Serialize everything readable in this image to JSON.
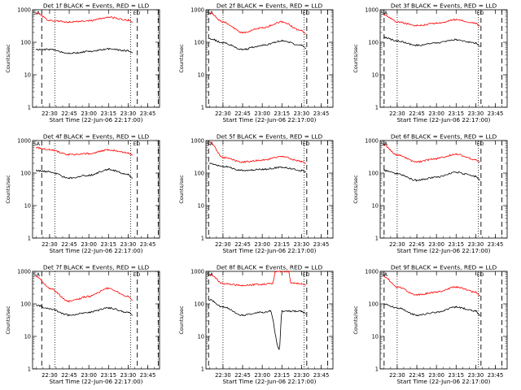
{
  "colors": {
    "events": "#000000",
    "lld": "#ff0000",
    "axes": "#000000",
    "background": "#ffffff"
  },
  "chart_data": [
    {
      "type": "line",
      "title": "Det 1f BLACK = Events, RED = LLD",
      "xlabel": "Start Time (22-Jun-06 22:17:00)",
      "ylabel": "Counts/sec",
      "xlim": [
        "22:17",
        "23:54"
      ],
      "ylim": [
        1,
        1000
      ],
      "yscale": "log",
      "xticks": [
        "22:30",
        "22:45",
        "23:00",
        "23:15",
        "23:30",
        "23:45"
      ],
      "yticks": [
        "1",
        "10",
        "100",
        "1000"
      ],
      "markers": {
        "dashed": [
          "22:24",
          "23:37",
          "23:53"
        ],
        "dotted": [
          "22:34",
          "23:32"
        ],
        "flag_labels": [
          "SA",
          "ED"
        ]
      },
      "series": [
        {
          "name": "Events",
          "x": [
            "22:20",
            "22:30",
            "22:45",
            "23:00",
            "23:15",
            "23:30",
            "23:33"
          ],
          "values": [
            60,
            60,
            45,
            52,
            62,
            55,
            48
          ]
        },
        {
          "name": "LLD",
          "x": [
            "22:20",
            "22:30",
            "22:45",
            "23:00",
            "23:15",
            "23:30",
            "23:33"
          ],
          "values": [
            800,
            470,
            420,
            460,
            590,
            480,
            420
          ]
        }
      ]
    },
    {
      "type": "line",
      "title": "Det 2f BLACK = Events, RED = LLD",
      "xlabel": "Start Time (22-Jun-06 22:17:00)",
      "ylabel": "Counts/sec",
      "xlim": [
        "22:17",
        "23:54"
      ],
      "ylim": [
        1,
        1000
      ],
      "yscale": "log",
      "xticks": [
        "22:30",
        "22:45",
        "23:00",
        "23:15",
        "23:30",
        "23:45"
      ],
      "yticks": [
        "1",
        "10",
        "100",
        "1000"
      ],
      "markers": {
        "dashed": [
          "22:19",
          "23:34",
          "23:50"
        ],
        "dotted": [
          "22:30",
          "23:32"
        ],
        "flag_labels": [
          "SA",
          "ED"
        ]
      },
      "series": [
        {
          "name": "Events",
          "x": [
            "22:20",
            "22:30",
            "22:45",
            "23:00",
            "23:15",
            "23:30",
            "23:33"
          ],
          "values": [
            130,
            95,
            60,
            80,
            110,
            80,
            65
          ]
        },
        {
          "name": "LLD",
          "x": [
            "22:20",
            "22:30",
            "22:45",
            "23:00",
            "23:15",
            "23:30",
            "23:33"
          ],
          "values": [
            800,
            420,
            200,
            280,
            420,
            230,
            180
          ]
        }
      ]
    },
    {
      "type": "line",
      "title": "Det 3f BLACK = Events, RED = LLD",
      "xlabel": "Start Time (22-Jun-06 22:17:00)",
      "ylabel": "Counts/sec",
      "xlim": [
        "22:17",
        "23:54"
      ],
      "ylim": [
        1,
        1000
      ],
      "yscale": "log",
      "xticks": [
        "22:30",
        "22:45",
        "23:00",
        "23:15",
        "23:30",
        "23:45"
      ],
      "yticks": [
        "1",
        "10",
        "100",
        "1000"
      ],
      "markers": {
        "dashed": [
          "22:20",
          "23:34",
          "23:50"
        ],
        "dotted": [
          "22:30",
          "23:32"
        ],
        "flag_labels": [
          "SA",
          "ED"
        ]
      },
      "series": [
        {
          "name": "Events",
          "x": [
            "22:20",
            "22:30",
            "22:45",
            "23:00",
            "23:15",
            "23:30",
            "23:33"
          ],
          "values": [
            140,
            110,
            80,
            95,
            120,
            95,
            75
          ]
        },
        {
          "name": "LLD",
          "x": [
            "22:20",
            "22:30",
            "22:45",
            "23:00",
            "23:15",
            "23:30",
            "23:33"
          ],
          "values": [
            700,
            420,
            330,
            380,
            500,
            380,
            320
          ]
        }
      ]
    },
    {
      "type": "line",
      "title": "Det 4f BLACK = Events, RED = LLD",
      "xlabel": "Start Time (22-Jun-06 22:17:00)",
      "ylabel": "Counts/sec",
      "xlim": [
        "22:17",
        "23:54"
      ],
      "ylim": [
        1,
        1000
      ],
      "yscale": "log",
      "xticks": [
        "22:30",
        "22:45",
        "23:00",
        "23:15",
        "23:30",
        "23:45"
      ],
      "yticks": [
        "1",
        "10",
        "100",
        "1000"
      ],
      "markers": {
        "dashed": [
          "22:24",
          "23:37",
          "23:53"
        ],
        "dotted": [
          "22:34",
          "23:32"
        ],
        "flag_labels": [
          "SA",
          "ED"
        ]
      },
      "series": [
        {
          "name": "Events",
          "x": [
            "22:20",
            "22:30",
            "22:45",
            "23:00",
            "23:15",
            "23:30",
            "23:33"
          ],
          "values": [
            120,
            110,
            70,
            85,
            130,
            90,
            70
          ]
        },
        {
          "name": "LLD",
          "x": [
            "22:20",
            "22:30",
            "22:45",
            "23:00",
            "23:15",
            "23:30",
            "23:33"
          ],
          "values": [
            600,
            520,
            370,
            400,
            520,
            420,
            360
          ]
        }
      ]
    },
    {
      "type": "line",
      "title": "Det 5f BLACK = Events, RED = LLD",
      "xlabel": "Start Time (22-Jun-06 22:17:00)",
      "ylabel": "Counts/sec",
      "xlim": [
        "22:17",
        "23:54"
      ],
      "ylim": [
        1,
        1000
      ],
      "yscale": "log",
      "xticks": [
        "22:30",
        "22:45",
        "23:00",
        "23:15",
        "23:30",
        "23:45"
      ],
      "yticks": [
        "1",
        "10",
        "100",
        "1000"
      ],
      "markers": {
        "dashed": [
          "22:19",
          "23:34",
          "23:50"
        ],
        "dotted": [
          "22:30",
          "23:32"
        ],
        "flag_labels": [
          "SA",
          "ED"
        ]
      },
      "series": [
        {
          "name": "Events",
          "x": [
            "22:20",
            "22:30",
            "22:45",
            "23:00",
            "23:15",
            "23:30",
            "23:33"
          ],
          "values": [
            200,
            160,
            120,
            130,
            150,
            120,
            110
          ]
        },
        {
          "name": "LLD",
          "x": [
            "22:20",
            "22:30",
            "22:45",
            "23:00",
            "23:15",
            "23:30",
            "23:33"
          ],
          "values": [
            900,
            300,
            220,
            250,
            320,
            230,
            200
          ]
        }
      ]
    },
    {
      "type": "line",
      "title": "Det 6f BLACK = Events, RED = LLD",
      "xlabel": "Start Time (22-Jun-06 22:17:00)",
      "ylabel": "Counts/sec",
      "xlim": [
        "22:17",
        "23:54"
      ],
      "ylim": [
        1,
        1000
      ],
      "yscale": "log",
      "xticks": [
        "22:30",
        "22:45",
        "23:00",
        "23:15",
        "23:30",
        "23:45"
      ],
      "yticks": [
        "1",
        "10",
        "100",
        "1000"
      ],
      "markers": {
        "dashed": [
          "22:20",
          "23:34",
          "23:50"
        ],
        "dotted": [
          "22:30",
          "23:32"
        ],
        "flag_labels": [
          "SA",
          "ED"
        ]
      },
      "series": [
        {
          "name": "Events",
          "x": [
            "22:20",
            "22:30",
            "22:45",
            "23:00",
            "23:15",
            "23:30",
            "23:33"
          ],
          "values": [
            120,
            95,
            60,
            75,
            105,
            80,
            62
          ]
        },
        {
          "name": "LLD",
          "x": [
            "22:20",
            "22:30",
            "22:45",
            "23:00",
            "23:15",
            "23:30",
            "23:33"
          ],
          "values": [
            700,
            360,
            220,
            280,
            380,
            260,
            220
          ]
        }
      ]
    },
    {
      "type": "line",
      "title": "Det 7f BLACK = Events, RED = LLD",
      "xlabel": "Start Time (22-Jun-06 22:17:00)",
      "ylabel": "Counts/sec",
      "xlim": [
        "22:17",
        "23:54"
      ],
      "ylim": [
        1,
        1000
      ],
      "yscale": "log",
      "xticks": [
        "22:30",
        "22:45",
        "23:00",
        "23:15",
        "23:30",
        "23:45"
      ],
      "yticks": [
        "1",
        "10",
        "100",
        "1000"
      ],
      "markers": {
        "dashed": [
          "22:24",
          "23:37",
          "23:53"
        ],
        "dotted": [
          "22:34",
          "23:32"
        ],
        "flag_labels": [
          "SA",
          "ED"
        ]
      },
      "series": [
        {
          "name": "Events",
          "x": [
            "22:20",
            "22:30",
            "22:45",
            "23:00",
            "23:15",
            "23:30",
            "23:33"
          ],
          "values": [
            90,
            70,
            45,
            55,
            75,
            55,
            45
          ]
        },
        {
          "name": "LLD",
          "x": [
            "22:20",
            "22:30",
            "22:45",
            "23:00",
            "23:15",
            "23:30",
            "23:33"
          ],
          "values": [
            700,
            300,
            120,
            170,
            300,
            170,
            130
          ]
        }
      ]
    },
    {
      "type": "line",
      "title": "Det 8f BLACK = Events, RED = LLD",
      "xlabel": "Start Time (22-Jun-06 22:17:00)",
      "ylabel": "Counts/sec",
      "xlim": [
        "22:17",
        "23:54"
      ],
      "ylim": [
        1,
        1000
      ],
      "yscale": "log",
      "xticks": [
        "22:30",
        "22:45",
        "23:00",
        "23:15",
        "23:30",
        "23:45"
      ],
      "yticks": [
        "1",
        "10",
        "100",
        "1000"
      ],
      "markers": {
        "dashed": [
          "22:19",
          "23:34",
          "23:50"
        ],
        "dotted": [
          "22:30",
          "23:32"
        ],
        "flag_labels": [
          "SA",
          "ED"
        ]
      },
      "series": [
        {
          "name": "Events",
          "x": [
            "22:20",
            "22:30",
            "22:45",
            "23:00",
            "23:06",
            "23:13",
            "23:15",
            "23:30",
            "23:33"
          ],
          "values": [
            130,
            80,
            45,
            55,
            60,
            4,
            60,
            60,
            50
          ]
        },
        {
          "name": "LLD",
          "x": [
            "22:20",
            "22:30",
            "22:45",
            "23:00",
            "23:08",
            "23:10",
            "23:20",
            "23:22",
            "23:30",
            "23:33"
          ],
          "values": [
            800,
            420,
            370,
            400,
            430,
            1000,
            1000,
            450,
            420,
            380
          ]
        }
      ]
    },
    {
      "type": "line",
      "title": "Det 9f BLACK = Events, RED = LLD",
      "xlabel": "Start Time (22-Jun-06 22:17:00)",
      "ylabel": "Counts/sec",
      "xlim": [
        "22:17",
        "23:54"
      ],
      "ylim": [
        1,
        1000
      ],
      "yscale": "log",
      "xticks": [
        "22:30",
        "22:45",
        "23:00",
        "23:15",
        "23:30",
        "23:45"
      ],
      "yticks": [
        "1",
        "10",
        "100",
        "1000"
      ],
      "markers": {
        "dashed": [
          "22:20",
          "23:34",
          "23:50"
        ],
        "dotted": [
          "22:30",
          "23:32"
        ],
        "flag_labels": [
          "SA",
          "ED"
        ]
      },
      "series": [
        {
          "name": "Events",
          "x": [
            "22:20",
            "22:30",
            "22:45",
            "23:00",
            "23:15",
            "23:30",
            "23:33"
          ],
          "values": [
            100,
            75,
            45,
            55,
            80,
            60,
            45
          ]
        },
        {
          "name": "LLD",
          "x": [
            "22:20",
            "22:30",
            "22:45",
            "23:00",
            "23:15",
            "23:30",
            "23:33"
          ],
          "values": [
            700,
            330,
            190,
            230,
            330,
            230,
            180
          ]
        }
      ]
    }
  ]
}
